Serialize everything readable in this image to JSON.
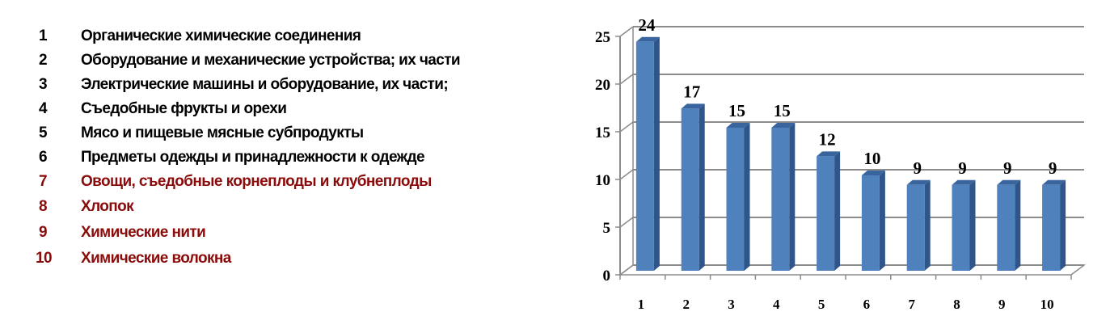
{
  "legend": {
    "items": [
      {
        "num": "1",
        "label": "Органические химические соединения",
        "color": "#000000"
      },
      {
        "num": "2",
        "label": "Оборудование и механические устройства; их части",
        "color": "#000000"
      },
      {
        "num": "3",
        "label": "Электрические машины и оборудование, их части;",
        "color": "#000000"
      },
      {
        "num": "4",
        "label": "Съедобные фрукты и орехи",
        "color": "#000000"
      },
      {
        "num": "5",
        "label": "Мясо и пищевые мясные субпродукты",
        "color": "#000000"
      },
      {
        "num": "6",
        "label": "Предметы одежды и принадлежности к одежде",
        "color": "#000000"
      },
      {
        "num": "7",
        "label": "Овощи, съедобные корнеплоды и клубнеплоды",
        "color": "#8b0a0a"
      },
      {
        "num": "8",
        "label": "Хлопок",
        "color": "#8b0a0a"
      },
      {
        "num": "9",
        "label": "Химические нити",
        "color": "#8b0a0a"
      },
      {
        "num": "10",
        "label": "Химические волокна",
        "color": "#8b0a0a"
      }
    ]
  },
  "chart_data": {
    "type": "bar",
    "style": "3d-column",
    "categories": [
      "1",
      "2",
      "3",
      "4",
      "5",
      "6",
      "7",
      "8",
      "9",
      "10"
    ],
    "values": [
      24,
      17,
      15,
      15,
      12,
      10,
      9,
      9,
      9,
      9
    ],
    "data_labels": [
      "24",
      "17",
      "15",
      "15",
      "12",
      "10",
      "9",
      "9",
      "9",
      "9"
    ],
    "ylim": [
      0,
      25
    ],
    "yticks": [
      "0",
      "5",
      "10",
      "15",
      "20",
      "25"
    ],
    "grid": true,
    "bar_color": "#4f81bd",
    "bar_side_color": "#2f5589",
    "title": "",
    "xlabel": "",
    "ylabel": ""
  }
}
